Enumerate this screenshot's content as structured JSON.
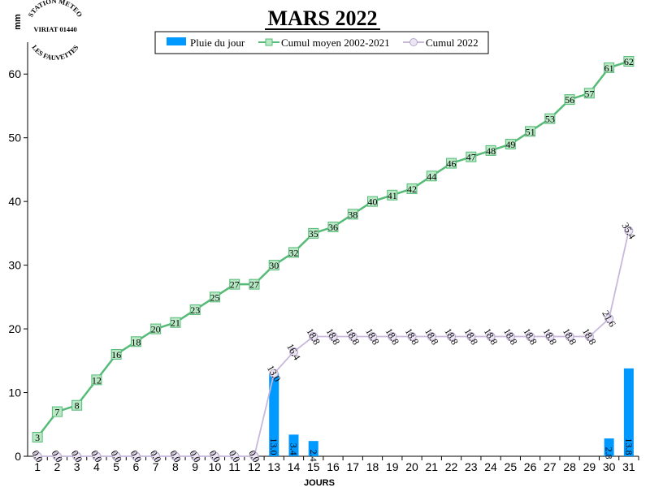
{
  "chart_data": {
    "type": "bar",
    "title": "MARS 2022",
    "xlabel": "JOURS",
    "ylabel": "mm",
    "ylim": [
      0,
      65
    ],
    "yticks": [
      0,
      10,
      20,
      30,
      40,
      50,
      60
    ],
    "categories": [
      "1",
      "2",
      "3",
      "4",
      "5",
      "6",
      "7",
      "8",
      "9",
      "10",
      "11",
      "12",
      "13",
      "14",
      "15",
      "16",
      "17",
      "18",
      "19",
      "20",
      "21",
      "22",
      "23",
      "24",
      "25",
      "26",
      "27",
      "28",
      "29",
      "30",
      "31"
    ],
    "legend_position": "top-center",
    "grid": false,
    "logo": {
      "line1": "STATION METEO",
      "line2": "VIRIAT 01440",
      "line3": "LES FAUVETTES"
    },
    "series": [
      {
        "name": "Pluie du jour",
        "type": "bar",
        "color": "#0099ff",
        "values": [
          0,
          0,
          0,
          0,
          0,
          0,
          0,
          0,
          0,
          0,
          0,
          0,
          13.0,
          3.4,
          2.4,
          0,
          0,
          0,
          0,
          0,
          0,
          0,
          0,
          0,
          0,
          0,
          0,
          0,
          0,
          2.8,
          13.8
        ],
        "labels": [
          "",
          "",
          "",
          "",
          "",
          "",
          "",
          "",
          "",
          "",
          "",
          "",
          "13.0",
          "3.4",
          "2.4",
          "",
          "",
          "",
          "",
          "",
          "",
          "",
          "",
          "",
          "",
          "",
          "",
          "",
          "",
          "2.8",
          "13.8"
        ]
      },
      {
        "name": "Cumul moyen 2002-2021",
        "type": "line",
        "color": "#55bb77",
        "values": [
          3,
          7,
          8,
          12,
          16,
          18,
          20,
          21,
          23,
          25,
          27,
          27,
          30,
          32,
          35,
          36,
          38,
          40,
          41,
          42,
          44,
          46,
          47,
          48,
          49,
          51,
          53,
          56,
          57,
          61,
          62
        ],
        "labels": [
          "3",
          "7",
          "8",
          "12",
          "16",
          "18",
          "20",
          "21",
          "23",
          "25",
          "27",
          "27",
          "30",
          "32",
          "35",
          "36",
          "38",
          "40",
          "41",
          "42",
          "44",
          "46",
          "47",
          "48",
          "49",
          "51",
          "53",
          "56",
          "57",
          "61",
          "62"
        ]
      },
      {
        "name": "Cumul 2022",
        "type": "line",
        "color": "#c8b8dc",
        "values": [
          0,
          0,
          0,
          0,
          0,
          0,
          0,
          0,
          0,
          0,
          0,
          0,
          13.0,
          16.4,
          18.8,
          18.8,
          18.8,
          18.8,
          18.8,
          18.8,
          18.8,
          18.8,
          18.8,
          18.8,
          18.8,
          18.8,
          18.8,
          18.8,
          18.8,
          21.6,
          35.4
        ],
        "labels": [
          "0.0",
          "0.0",
          "0.0",
          "0.0",
          "0.0",
          "0.0",
          "0.0",
          "0.0",
          "0.0",
          "0.0",
          "0.0",
          "0.0",
          "13.0",
          "16.4",
          "18.8",
          "18.8",
          "18.8",
          "18.8",
          "18.8",
          "18.8",
          "18.8",
          "18.8",
          "18.8",
          "18.8",
          "18.8",
          "18.8",
          "18.8",
          "18.8",
          "18.8",
          "21.6",
          "35.4"
        ]
      }
    ]
  }
}
